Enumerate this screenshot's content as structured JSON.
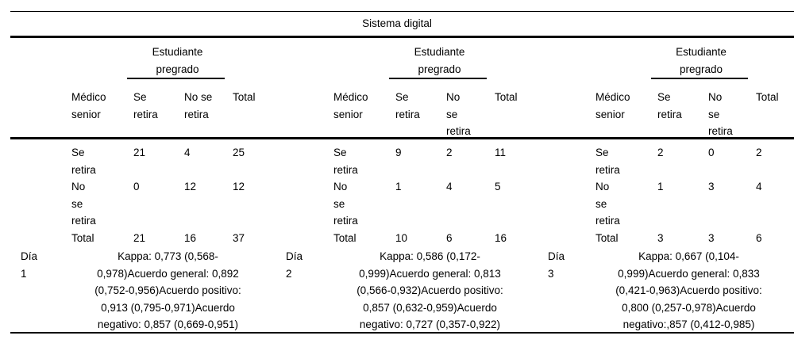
{
  "title": "Sistema digital",
  "colors": {
    "text": "#000000",
    "rule": "#000000",
    "background": "#ffffff"
  },
  "groups": [
    {
      "day": "Día\n1",
      "spanner": "Estudiante\npregrado",
      "headers": {
        "rater": "Médico\nsenior",
        "se_retira": "Se\nretira",
        "no_se_retira": "No se\nretira",
        "total": "Total"
      },
      "rows": [
        {
          "label": "Se\nretira",
          "se_retira": "21",
          "no_se_retira": "4",
          "total": "25"
        },
        {
          "label": "No\nse\nretira",
          "se_retira": "0",
          "no_se_retira": "12",
          "total": "12"
        },
        {
          "label": "Total",
          "se_retira": "21",
          "no_se_retira": "16",
          "total": "37"
        }
      ],
      "stats": "Kappa: 0,773 (0,568-\n0,978)Acuerdo general: 0,892\n(0,752-0,956)Acuerdo positivo:\n0,913 (0,795-0,971)Acuerdo\nnegativo: 0,857 (0,669-0,951)"
    },
    {
      "day": "Día\n2",
      "spanner": "Estudiante\npregrado",
      "headers": {
        "rater": "Médico\nsenior",
        "se_retira": "Se\nretira",
        "no_se_retira": "No\nse\nretira",
        "total": "Total"
      },
      "rows": [
        {
          "label": "Se\nretira",
          "se_retira": "9",
          "no_se_retira": "2",
          "total": "11"
        },
        {
          "label": "No\nse\nretira",
          "se_retira": "1",
          "no_se_retira": "4",
          "total": "5"
        },
        {
          "label": "Total",
          "se_retira": "10",
          "no_se_retira": "6",
          "total": "16"
        }
      ],
      "stats": "Kappa: 0,586 (0,172-\n0,999)Acuerdo general: 0,813\n(0,566-0,932)Acuerdo positivo:\n0,857 (0,632-0,959)Acuerdo\nnegativo: 0,727 (0,357-0,922)"
    },
    {
      "day": "Día\n3",
      "spanner": "Estudiante\npregrado",
      "headers": {
        "rater": "Médico\nsenior",
        "se_retira": "Se\nretira",
        "no_se_retira": "No\nse\nretira",
        "total": "Total"
      },
      "rows": [
        {
          "label": "Se\nretira",
          "se_retira": "2",
          "no_se_retira": "0",
          "total": "2"
        },
        {
          "label": "No\nse\nretira",
          "se_retira": "1",
          "no_se_retira": "3",
          "total": "4"
        },
        {
          "label": "Total",
          "se_retira": "3",
          "no_se_retira": "3",
          "total": "6"
        }
      ],
      "stats": "Kappa: 0,667 (0,104-\n0,999)Acuerdo general: 0,833\n(0,421-0,963)Acuerdo positivo:\n0,800 (0,257-0,978)Acuerdo\nnegativo:,857 (0,412-0,985)"
    }
  ]
}
